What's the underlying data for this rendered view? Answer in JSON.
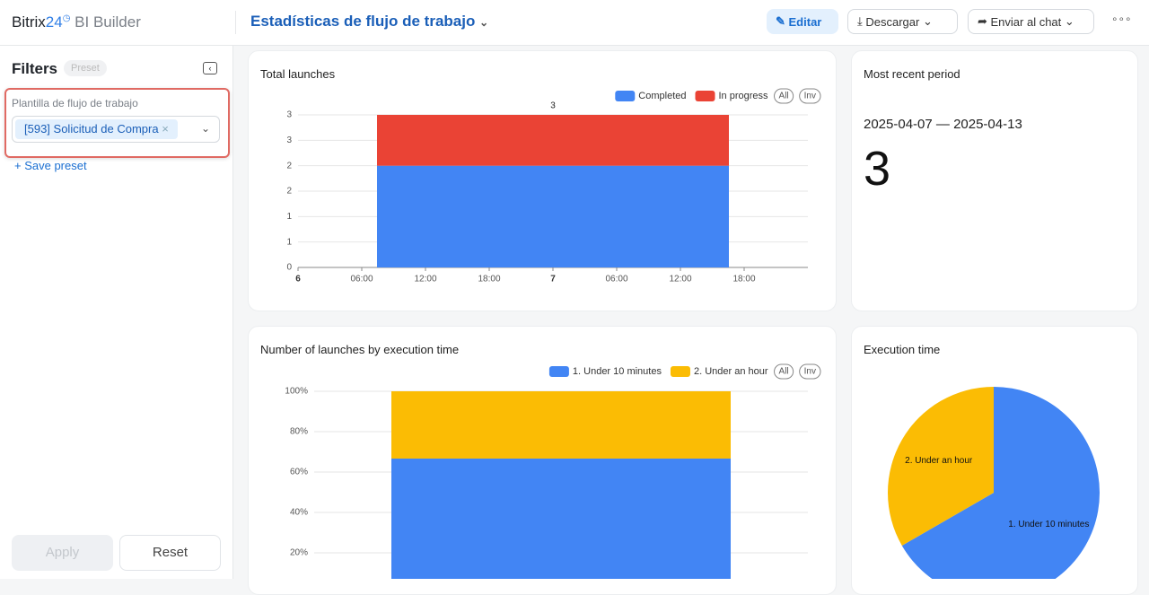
{
  "header": {
    "logo_name": "Bitrix",
    "logo_number": "24",
    "product": "BI Builder",
    "title": "Estadísticas de flujo de trabajo",
    "buttons": [
      "Editar",
      "Descargar",
      "Enviar al chat"
    ]
  },
  "filters": {
    "title": "Filters",
    "preset_badge": "Preset",
    "field_label": "Plantilla de flujo de trabajo",
    "selected": "[593] Solicitud de Compra",
    "save_preset": "+ Save preset",
    "apply": "Apply",
    "reset": "Reset"
  },
  "kpi": {
    "title": "Most recent period",
    "period": "2025-04-07 — 2025-04-13",
    "value": 3
  },
  "chart_data": [
    {
      "type": "bar",
      "stacked": true,
      "title": "Total launches",
      "x": [
        24
      ],
      "xlim": [
        0,
        48
      ],
      "xticks": [
        {
          "value": 0,
          "label": "6"
        },
        {
          "value": 6,
          "label": "06:00"
        },
        {
          "value": 12,
          "label": "12:00"
        },
        {
          "value": 18,
          "label": "18:00"
        },
        {
          "value": 24,
          "label": "7"
        },
        {
          "value": 30,
          "label": "06:00"
        },
        {
          "value": 36,
          "label": "12:00"
        },
        {
          "value": 42,
          "label": "18:00"
        }
      ],
      "ylim": [
        0,
        3
      ],
      "yticks": [
        0,
        {
          "value": 0.5,
          "label": "1"
        },
        1,
        {
          "value": 1.5,
          "label": "2"
        },
        2,
        {
          "value": 2.5,
          "label": "3"
        },
        3
      ],
      "series": [
        {
          "name": "Completed",
          "color": "#4285f4",
          "values": [
            2
          ]
        },
        {
          "name": "In progress",
          "color": "#ea4335",
          "values": [
            1
          ]
        }
      ],
      "totals": [
        3
      ],
      "legend_controls": [
        "All",
        "Inv"
      ],
      "grid": true
    },
    {
      "type": "bar",
      "stacked": true,
      "title": "Number of launches by execution time",
      "categories": [
        null
      ],
      "ylim": [
        0,
        100
      ],
      "yticks": [
        {
          "value": 20,
          "label": "20%"
        },
        {
          "value": 40,
          "label": "40%"
        },
        {
          "value": 60,
          "label": "60%"
        },
        {
          "value": 80,
          "label": "80%"
        },
        {
          "value": 100,
          "label": "100%"
        }
      ],
      "series": [
        {
          "name": "1. Under 10 minutes",
          "color": "#4285f4",
          "values": [
            66.67
          ]
        },
        {
          "name": "2. Under an hour",
          "color": "#fbbc04",
          "values": [
            33.33
          ]
        }
      ],
      "legend_controls": [
        "All",
        "Inv"
      ],
      "grid": true
    },
    {
      "type": "pie",
      "title": "Execution time",
      "categories": [
        "1. Under 10 minutes",
        "2. Under an hour"
      ],
      "values": [
        66.67,
        33.33
      ],
      "colors": [
        "#4285f4",
        "#fbbc04"
      ]
    }
  ]
}
